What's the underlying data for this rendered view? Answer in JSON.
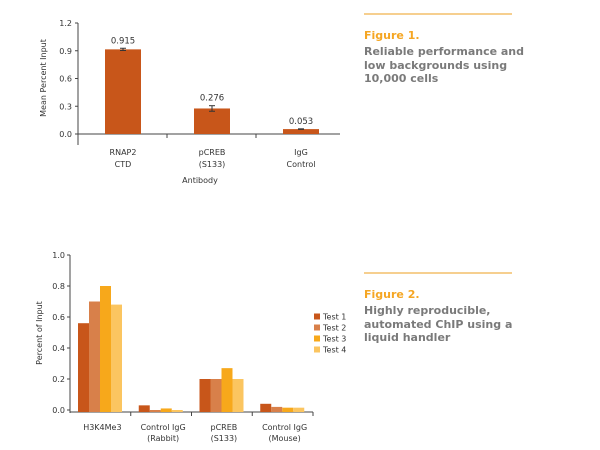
{
  "chart_data": [
    {
      "type": "bar",
      "title": "",
      "xlabel": "Antibody",
      "ylabel": "Mean Percent Input",
      "ylim": [
        0,
        1.2
      ],
      "yticks": [
        "0.0",
        "0.3",
        "0.6",
        "0.9",
        "1.2"
      ],
      "ytick_values": [
        0,
        0.3,
        0.6,
        0.9,
        1.2
      ],
      "categories": [
        [
          "RNAP2",
          "CTD"
        ],
        [
          "pCREB",
          "(S133)"
        ],
        [
          "IgG",
          "Control"
        ]
      ],
      "values": [
        0.915,
        0.276,
        0.053
      ],
      "data_labels": [
        "0.915",
        "0.276",
        "0.053"
      ],
      "error": [
        0.012,
        0.03,
        0.003
      ],
      "color": "#c8561a",
      "grid": false
    },
    {
      "type": "bar",
      "title": "",
      "xlabel": "",
      "ylabel": "Percent of Input",
      "ylim": [
        0,
        1.0
      ],
      "yticks": [
        "0.0",
        "0.2",
        "0.4",
        "0.6",
        "0.8",
        "1.0"
      ],
      "ytick_values": [
        0,
        0.2,
        0.4,
        0.6,
        0.8,
        1.0
      ],
      "categories": [
        [
          "H3K4Me3"
        ],
        [
          "Control IgG",
          "(Rabbit)"
        ],
        [
          "pCREB",
          "(S133)"
        ],
        [
          "Control IgG",
          "(Mouse)"
        ]
      ],
      "series": [
        {
          "name": "Test 1",
          "color": "#c8561a",
          "values": [
            0.56,
            0.03,
            0.2,
            0.04
          ]
        },
        {
          "name": "Test 2",
          "color": "#d8804a",
          "values": [
            0.7,
            0.0,
            0.2,
            0.02
          ]
        },
        {
          "name": "Test 3",
          "color": "#f7a81b",
          "values": [
            0.8,
            0.01,
            0.27,
            0.015
          ]
        },
        {
          "name": "Test 4",
          "color": "#fbc560",
          "values": [
            0.68,
            0.0,
            0.2,
            0.015
          ]
        }
      ],
      "legend_position": "right",
      "grid": false
    }
  ],
  "captions": [
    {
      "figure": "Figure 1.",
      "lines": [
        "Reliable performance and",
        "low backgrounds using",
        "10,000 cells"
      ]
    },
    {
      "figure": "Figure 2.",
      "lines": [
        "Highly reproducible,",
        "automated ChIP using a",
        "liquid handler"
      ]
    }
  ]
}
